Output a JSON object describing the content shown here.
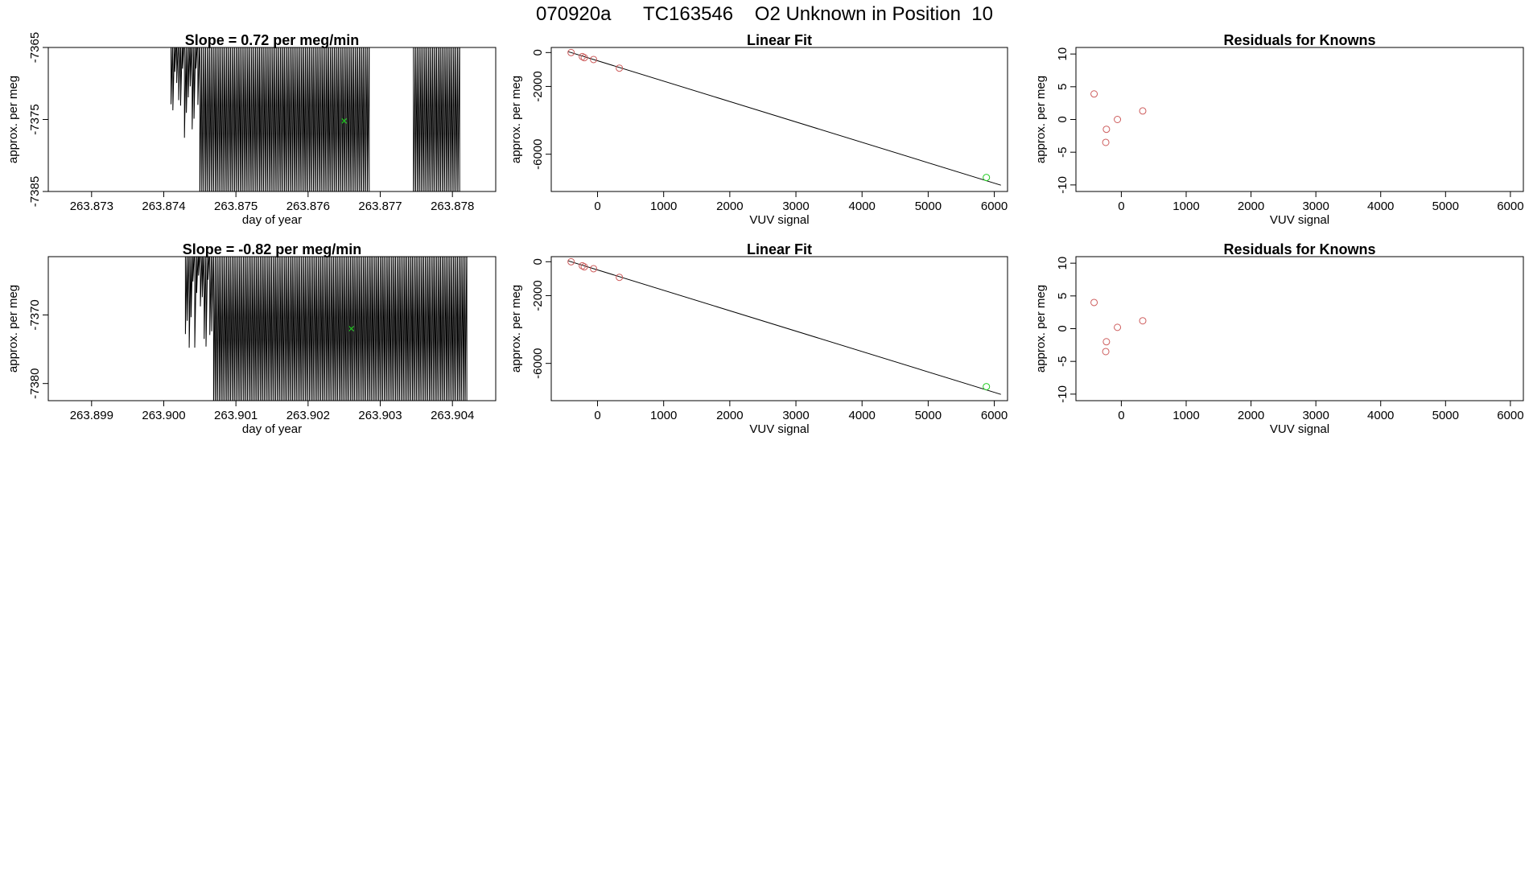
{
  "title": "070920a      TC163546    O2 Unknown in Position  10",
  "colors": {
    "known": "#cd5c5c",
    "unknown": "#22cc22",
    "line": "#000000"
  },
  "chart_data": [
    {
      "type": "line",
      "title": "Slope =  0.72  per meg/min",
      "xlabel": "day of year",
      "ylabel": "approx. per meg",
      "xlim": [
        263.8724,
        263.8786
      ],
      "ylim": [
        -7385,
        -7365
      ],
      "xticks": [
        263.873,
        263.874,
        263.875,
        263.876,
        263.877,
        263.878
      ],
      "xtick_labels": [
        "263.873",
        "263.874",
        "263.875",
        "263.876",
        "263.877",
        "263.878"
      ],
      "yticks": [
        -7385,
        -7375,
        -7365
      ],
      "ytick_labels": [
        "-7385",
        "-7375",
        "-7365"
      ],
      "trace": {
        "x_start": 263.8741,
        "x_end": 263.8781,
        "gaps": [
          [
            263.87685,
            263.87745
          ]
        ],
        "n": 150,
        "seed": 7
      },
      "marker": {
        "x": 263.8765,
        "y": -7375.2
      }
    },
    {
      "type": "scatter",
      "title": "Linear Fit",
      "xlabel": "VUV signal",
      "ylabel": "approx. per meg",
      "xlim": [
        -700,
        6200
      ],
      "ylim": [
        -8200,
        300
      ],
      "xticks": [
        0,
        1000,
        2000,
        3000,
        4000,
        5000,
        6000
      ],
      "xtick_labels": [
        "0",
        "1000",
        "2000",
        "3000",
        "4000",
        "5000",
        "6000"
      ],
      "yticks": [
        -6000,
        -2000,
        0
      ],
      "ytick_labels": [
        "-6000",
        "-2000",
        "0"
      ],
      "known_points": [
        {
          "x": -400,
          "y": 0
        },
        {
          "x": -230,
          "y": -240
        },
        {
          "x": -200,
          "y": -300
        },
        {
          "x": -60,
          "y": -410
        },
        {
          "x": 330,
          "y": -920
        }
      ],
      "unknown_point": {
        "x": 5880,
        "y": -7372
      },
      "fit_line": {
        "x": [
          -450,
          6100
        ],
        "y": [
          60,
          -7830
        ]
      }
    },
    {
      "type": "scatter",
      "title": "Residuals for Knowns",
      "xlabel": "VUV signal",
      "ylabel": "approx. per meg",
      "xlim": [
        -700,
        6200
      ],
      "ylim": [
        -11,
        11
      ],
      "xticks": [
        0,
        1000,
        2000,
        3000,
        4000,
        5000,
        6000
      ],
      "xtick_labels": [
        "0",
        "1000",
        "2000",
        "3000",
        "4000",
        "5000",
        "6000"
      ],
      "yticks": [
        -10,
        -5,
        0,
        5,
        10
      ],
      "ytick_labels": [
        "-10",
        "-5",
        "0",
        "5",
        "10"
      ],
      "known_points": [
        {
          "x": -420,
          "y": 3.9
        },
        {
          "x": -230,
          "y": -1.5
        },
        {
          "x": -240,
          "y": -3.5
        },
        {
          "x": -60,
          "y": 0
        },
        {
          "x": 330,
          "y": 1.3
        }
      ]
    },
    {
      "type": "line",
      "title": "Slope =  -0.82  per meg/min",
      "xlabel": "day of year",
      "ylabel": "approx. per meg",
      "xlim": [
        263.8984,
        263.9046
      ],
      "ylim": [
        -7382.5,
        -7361.5
      ],
      "xticks": [
        263.899,
        263.9,
        263.901,
        263.902,
        263.903,
        263.904
      ],
      "xtick_labels": [
        "263.899",
        "263.900",
        "263.901",
        "263.902",
        "263.903",
        "263.904"
      ],
      "yticks": [
        -7380,
        -7370
      ],
      "ytick_labels": [
        "-7380",
        "-7370"
      ],
      "trace": {
        "x_start": 263.9003,
        "x_end": 263.9042,
        "gaps": [],
        "n": 150,
        "seed": 13
      },
      "marker": {
        "x": 263.9026,
        "y": -7372
      }
    },
    {
      "type": "scatter",
      "title": "Linear Fit",
      "xlabel": "VUV signal",
      "ylabel": "approx. per meg",
      "xlim": [
        -700,
        6200
      ],
      "ylim": [
        -8200,
        300
      ],
      "xticks": [
        0,
        1000,
        2000,
        3000,
        4000,
        5000,
        6000
      ],
      "xtick_labels": [
        "0",
        "1000",
        "2000",
        "3000",
        "4000",
        "5000",
        "6000"
      ],
      "yticks": [
        -6000,
        -2000,
        0
      ],
      "ytick_labels": [
        "-6000",
        "-2000",
        "0"
      ],
      "known_points": [
        {
          "x": -400,
          "y": 0
        },
        {
          "x": -230,
          "y": -240
        },
        {
          "x": -200,
          "y": -300
        },
        {
          "x": -60,
          "y": -410
        },
        {
          "x": 330,
          "y": -920
        }
      ],
      "unknown_point": {
        "x": 5880,
        "y": -7372
      },
      "fit_line": {
        "x": [
          -450,
          6100
        ],
        "y": [
          60,
          -7830
        ]
      }
    },
    {
      "type": "scatter",
      "title": "Residuals for Knowns",
      "xlabel": "VUV signal",
      "ylabel": "approx. per meg",
      "xlim": [
        -700,
        6200
      ],
      "ylim": [
        -11,
        11
      ],
      "xticks": [
        0,
        1000,
        2000,
        3000,
        4000,
        5000,
        6000
      ],
      "xtick_labels": [
        "0",
        "1000",
        "2000",
        "3000",
        "4000",
        "5000",
        "6000"
      ],
      "yticks": [
        -10,
        -5,
        0,
        5,
        10
      ],
      "ytick_labels": [
        "-10",
        "-5",
        "0",
        "5",
        "10"
      ],
      "known_points": [
        {
          "x": -420,
          "y": 4.0
        },
        {
          "x": -230,
          "y": -2.0
        },
        {
          "x": -240,
          "y": -3.5
        },
        {
          "x": -60,
          "y": 0.2
        },
        {
          "x": 330,
          "y": 1.2
        }
      ]
    }
  ]
}
